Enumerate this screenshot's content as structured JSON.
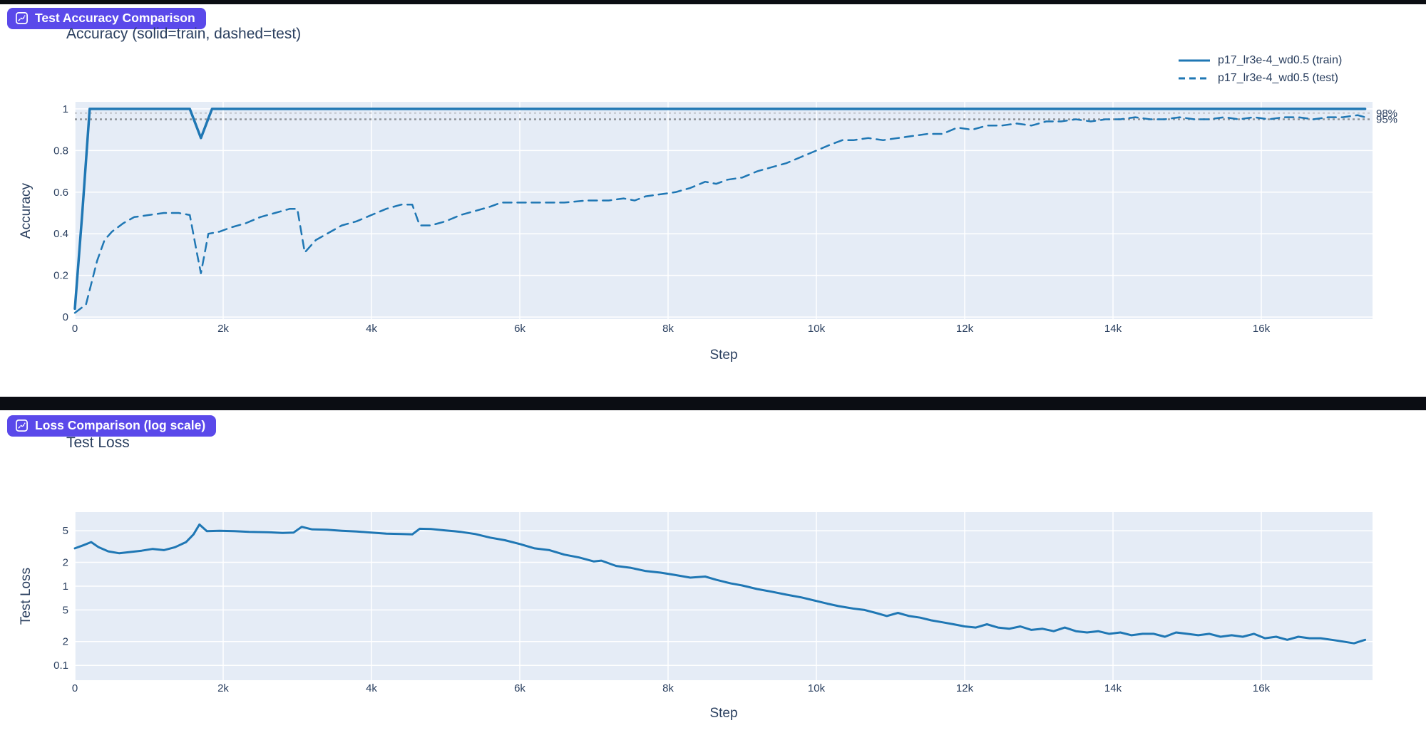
{
  "page": {
    "background": "#ffffff",
    "top_bar_color": "#0b0d13",
    "divider_color": "#0b0d13",
    "text_color": "#2a3f5f"
  },
  "badges": [
    {
      "label": "Test Accuracy Comparison",
      "bg": "#5a49ea",
      "fg": "#ffffff",
      "icon": "scatter-chart-icon"
    },
    {
      "label": "Loss Comparison (log scale)",
      "bg": "#5a49ea",
      "fg": "#ffffff",
      "icon": "scatter-chart-icon"
    }
  ],
  "chart_data": [
    {
      "id": "accuracy",
      "type": "line",
      "title": "Accuracy (solid=train, dashed=test)",
      "xlabel": "Step",
      "ylabel": "Accuracy",
      "xlim": [
        0,
        17500
      ],
      "ylim": [
        -0.01,
        1.034
      ],
      "yscale": "linear",
      "grid": true,
      "plot_bg": "#e5ecf6",
      "grid_color": "#ffffff",
      "text_color": "#2a3f5f",
      "legend_position": "top-right",
      "x_ticks": [
        {
          "v": 0,
          "label": "0"
        },
        {
          "v": 2000,
          "label": "2k"
        },
        {
          "v": 4000,
          "label": "4k"
        },
        {
          "v": 6000,
          "label": "6k"
        },
        {
          "v": 8000,
          "label": "8k"
        },
        {
          "v": 10000,
          "label": "10k"
        },
        {
          "v": 12000,
          "label": "12k"
        },
        {
          "v": 14000,
          "label": "14k"
        },
        {
          "v": 16000,
          "label": "16k"
        }
      ],
      "y_ticks": [
        {
          "v": 0,
          "label": "0"
        },
        {
          "v": 0.2,
          "label": "0.2"
        },
        {
          "v": 0.4,
          "label": "0.4"
        },
        {
          "v": 0.6,
          "label": "0.6"
        },
        {
          "v": 0.8,
          "label": "0.8"
        },
        {
          "v": 1,
          "label": "1"
        }
      ],
      "thresholds": [
        {
          "v": 0.98,
          "label": "98%",
          "color": "#c9cdd4"
        },
        {
          "v": 0.95,
          "label": "95%",
          "color": "#8e9399"
        }
      ],
      "legend": [
        {
          "label": "p17_lr3e-4_wd0.5 (train)",
          "style": "solid"
        },
        {
          "label": "p17_lr3e-4_wd0.5 (test)",
          "style": "dashed"
        }
      ],
      "series": [
        {
          "id": "train",
          "name": "p17_lr3e-4_wd0.5 (train)",
          "color": "#1f77b4",
          "style": "solid",
          "width": 3.5,
          "points": [
            [
              0,
              0.04
            ],
            [
              100,
              0.5
            ],
            [
              200,
              1.0
            ],
            [
              1550,
              1.0
            ],
            [
              1700,
              0.86
            ],
            [
              1850,
              1.0
            ],
            [
              17400,
              1.0
            ]
          ]
        },
        {
          "id": "test",
          "name": "p17_lr3e-4_wd0.5 (test)",
          "color": "#1f77b4",
          "style": "dashed",
          "width": 2.5,
          "points": [
            [
              0,
              0.02
            ],
            [
              150,
              0.06
            ],
            [
              300,
              0.27
            ],
            [
              400,
              0.37
            ],
            [
              500,
              0.41
            ],
            [
              650,
              0.45
            ],
            [
              800,
              0.48
            ],
            [
              1000,
              0.49
            ],
            [
              1200,
              0.5
            ],
            [
              1400,
              0.5
            ],
            [
              1550,
              0.49
            ],
            [
              1650,
              0.3
            ],
            [
              1700,
              0.21
            ],
            [
              1800,
              0.4
            ],
            [
              1950,
              0.41
            ],
            [
              2100,
              0.43
            ],
            [
              2300,
              0.45
            ],
            [
              2500,
              0.48
            ],
            [
              2700,
              0.5
            ],
            [
              2900,
              0.52
            ],
            [
              3000,
              0.52
            ],
            [
              3100,
              0.31
            ],
            [
              3250,
              0.37
            ],
            [
              3400,
              0.4
            ],
            [
              3600,
              0.44
            ],
            [
              3800,
              0.46
            ],
            [
              4000,
              0.49
            ],
            [
              4200,
              0.52
            ],
            [
              4400,
              0.54
            ],
            [
              4550,
              0.54
            ],
            [
              4650,
              0.44
            ],
            [
              4800,
              0.44
            ],
            [
              5000,
              0.46
            ],
            [
              5200,
              0.49
            ],
            [
              5400,
              0.51
            ],
            [
              5600,
              0.53
            ],
            [
              5750,
              0.55
            ],
            [
              6000,
              0.55
            ],
            [
              6300,
              0.55
            ],
            [
              6600,
              0.55
            ],
            [
              6900,
              0.56
            ],
            [
              7200,
              0.56
            ],
            [
              7400,
              0.57
            ],
            [
              7550,
              0.56
            ],
            [
              7700,
              0.58
            ],
            [
              7900,
              0.59
            ],
            [
              8100,
              0.6
            ],
            [
              8300,
              0.62
            ],
            [
              8500,
              0.65
            ],
            [
              8650,
              0.64
            ],
            [
              8800,
              0.66
            ],
            [
              9000,
              0.67
            ],
            [
              9200,
              0.7
            ],
            [
              9400,
              0.72
            ],
            [
              9600,
              0.74
            ],
            [
              9800,
              0.77
            ],
            [
              10000,
              0.8
            ],
            [
              10200,
              0.83
            ],
            [
              10350,
              0.85
            ],
            [
              10500,
              0.85
            ],
            [
              10700,
              0.86
            ],
            [
              10900,
              0.85
            ],
            [
              11100,
              0.86
            ],
            [
              11300,
              0.87
            ],
            [
              11500,
              0.88
            ],
            [
              11700,
              0.88
            ],
            [
              11900,
              0.91
            ],
            [
              12100,
              0.9
            ],
            [
              12300,
              0.92
            ],
            [
              12500,
              0.92
            ],
            [
              12700,
              0.93
            ],
            [
              12900,
              0.92
            ],
            [
              13100,
              0.94
            ],
            [
              13300,
              0.94
            ],
            [
              13500,
              0.95
            ],
            [
              13700,
              0.94
            ],
            [
              13900,
              0.95
            ],
            [
              14100,
              0.95
            ],
            [
              14300,
              0.96
            ],
            [
              14500,
              0.95
            ],
            [
              14700,
              0.95
            ],
            [
              14900,
              0.96
            ],
            [
              15100,
              0.95
            ],
            [
              15300,
              0.95
            ],
            [
              15500,
              0.96
            ],
            [
              15700,
              0.95
            ],
            [
              15900,
              0.96
            ],
            [
              16100,
              0.95
            ],
            [
              16300,
              0.96
            ],
            [
              16500,
              0.96
            ],
            [
              16700,
              0.95
            ],
            [
              16900,
              0.96
            ],
            [
              17100,
              0.96
            ],
            [
              17300,
              0.97
            ],
            [
              17400,
              0.96
            ]
          ]
        }
      ]
    },
    {
      "id": "loss",
      "type": "line",
      "title": "Test Loss",
      "xlabel": "Step",
      "ylabel": "Test Loss",
      "xlim": [
        0,
        17500
      ],
      "ylim": [
        0.065,
        8.6
      ],
      "yscale": "log",
      "grid": true,
      "plot_bg": "#e5ecf6",
      "grid_color": "#ffffff",
      "text_color": "#2a3f5f",
      "x_ticks": [
        {
          "v": 0,
          "label": "0"
        },
        {
          "v": 2000,
          "label": "2k"
        },
        {
          "v": 4000,
          "label": "4k"
        },
        {
          "v": 6000,
          "label": "6k"
        },
        {
          "v": 8000,
          "label": "8k"
        },
        {
          "v": 10000,
          "label": "10k"
        },
        {
          "v": 12000,
          "label": "12k"
        },
        {
          "v": 14000,
          "label": "14k"
        },
        {
          "v": 16000,
          "label": "16k"
        }
      ],
      "y_ticks": [
        {
          "v": 5,
          "label": "5"
        },
        {
          "v": 2,
          "label": "2"
        },
        {
          "v": 1,
          "label": "1"
        },
        {
          "v": 0.5,
          "label": "5"
        },
        {
          "v": 0.2,
          "label": "2"
        },
        {
          "v": 0.1,
          "label": "0.1"
        }
      ],
      "thresholds": [],
      "legend": [],
      "series": [
        {
          "id": "test_loss",
          "name": "Test Loss",
          "color": "#1f77b4",
          "style": "solid",
          "width": 3,
          "points": [
            [
              0,
              3.0
            ],
            [
              120,
              3.3
            ],
            [
              220,
              3.6
            ],
            [
              320,
              3.1
            ],
            [
              450,
              2.75
            ],
            [
              600,
              2.6
            ],
            [
              750,
              2.7
            ],
            [
              900,
              2.8
            ],
            [
              1050,
              2.95
            ],
            [
              1200,
              2.85
            ],
            [
              1350,
              3.1
            ],
            [
              1500,
              3.6
            ],
            [
              1600,
              4.5
            ],
            [
              1680,
              6.0
            ],
            [
              1780,
              4.95
            ],
            [
              1950,
              5.0
            ],
            [
              2150,
              4.95
            ],
            [
              2350,
              4.85
            ],
            [
              2600,
              4.8
            ],
            [
              2800,
              4.7
            ],
            [
              2950,
              4.75
            ],
            [
              3060,
              5.6
            ],
            [
              3200,
              5.2
            ],
            [
              3400,
              5.15
            ],
            [
              3600,
              5.0
            ],
            [
              3800,
              4.9
            ],
            [
              4000,
              4.75
            ],
            [
              4200,
              4.6
            ],
            [
              4400,
              4.55
            ],
            [
              4550,
              4.5
            ],
            [
              4650,
              5.3
            ],
            [
              4800,
              5.25
            ],
            [
              5000,
              5.05
            ],
            [
              5200,
              4.85
            ],
            [
              5400,
              4.55
            ],
            [
              5600,
              4.1
            ],
            [
              5800,
              3.8
            ],
            [
              6000,
              3.4
            ],
            [
              6200,
              3.0
            ],
            [
              6400,
              2.85
            ],
            [
              6600,
              2.5
            ],
            [
              6800,
              2.3
            ],
            [
              7000,
              2.05
            ],
            [
              7100,
              2.1
            ],
            [
              7300,
              1.8
            ],
            [
              7500,
              1.7
            ],
            [
              7700,
              1.55
            ],
            [
              7900,
              1.48
            ],
            [
              8100,
              1.38
            ],
            [
              8300,
              1.28
            ],
            [
              8500,
              1.32
            ],
            [
              8650,
              1.2
            ],
            [
              8850,
              1.08
            ],
            [
              9000,
              1.02
            ],
            [
              9200,
              0.92
            ],
            [
              9400,
              0.85
            ],
            [
              9600,
              0.78
            ],
            [
              9800,
              0.72
            ],
            [
              10000,
              0.65
            ],
            [
              10150,
              0.6
            ],
            [
              10300,
              0.56
            ],
            [
              10500,
              0.52
            ],
            [
              10650,
              0.5
            ],
            [
              10800,
              0.46
            ],
            [
              10950,
              0.42
            ],
            [
              11100,
              0.46
            ],
            [
              11250,
              0.42
            ],
            [
              11400,
              0.4
            ],
            [
              11550,
              0.37
            ],
            [
              11700,
              0.35
            ],
            [
              11850,
              0.33
            ],
            [
              12000,
              0.31
            ],
            [
              12150,
              0.3
            ],
            [
              12300,
              0.33
            ],
            [
              12450,
              0.3
            ],
            [
              12600,
              0.29
            ],
            [
              12750,
              0.31
            ],
            [
              12900,
              0.28
            ],
            [
              13050,
              0.29
            ],
            [
              13200,
              0.27
            ],
            [
              13350,
              0.3
            ],
            [
              13500,
              0.27
            ],
            [
              13650,
              0.26
            ],
            [
              13800,
              0.27
            ],
            [
              13950,
              0.25
            ],
            [
              14100,
              0.26
            ],
            [
              14250,
              0.24
            ],
            [
              14400,
              0.25
            ],
            [
              14550,
              0.25
            ],
            [
              14700,
              0.23
            ],
            [
              14850,
              0.26
            ],
            [
              15000,
              0.25
            ],
            [
              15150,
              0.24
            ],
            [
              15300,
              0.25
            ],
            [
              15450,
              0.23
            ],
            [
              15600,
              0.24
            ],
            [
              15750,
              0.23
            ],
            [
              15900,
              0.25
            ],
            [
              16050,
              0.22
            ],
            [
              16200,
              0.23
            ],
            [
              16350,
              0.21
            ],
            [
              16500,
              0.23
            ],
            [
              16650,
              0.22
            ],
            [
              16800,
              0.22
            ],
            [
              16950,
              0.21
            ],
            [
              17100,
              0.2
            ],
            [
              17250,
              0.19
            ],
            [
              17400,
              0.21
            ]
          ]
        }
      ]
    }
  ]
}
